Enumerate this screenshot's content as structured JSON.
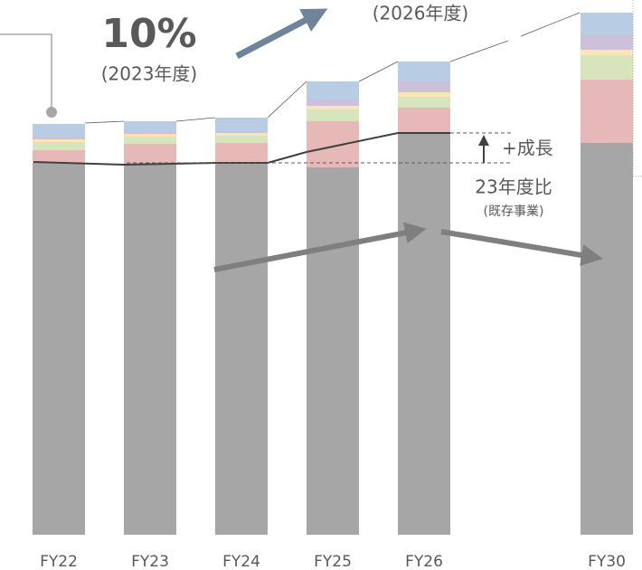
{
  "chart_data": {
    "type": "bar",
    "stacked": true,
    "categories": [
      "FY22",
      "FY23",
      "FY24",
      "FY25",
      "FY26",
      null,
      "FY30"
    ],
    "series": [
      {
        "color": "#a6a6a6",
        "values": [
          411,
          410,
          411,
          406,
          444,
          null,
          433
        ]
      },
      {
        "color": "#e6b8b7",
        "values": [
          14,
          22,
          22,
          51,
          28,
          null,
          70
        ]
      },
      {
        "color": "#d8e4bc",
        "values": [
          9,
          8,
          8,
          13,
          12,
          null,
          27
        ]
      },
      {
        "color": "#fde4b8",
        "values": [
          3,
          3,
          3,
          4,
          5,
          null,
          6
        ]
      },
      {
        "color": "#ccc0da",
        "values": [
          2,
          2,
          2,
          7,
          12,
          null,
          16
        ]
      },
      {
        "color": "#b8cce4",
        "values": [
          15,
          12,
          15,
          20,
          22,
          null,
          25
        ]
      }
    ],
    "ylim": [
      0,
      591
    ],
    "annotations": [
      "10%",
      "(2023年度)",
      "(2026年度)",
      "+成長",
      "23年度比",
      "(既存事業)"
    ]
  }
}
